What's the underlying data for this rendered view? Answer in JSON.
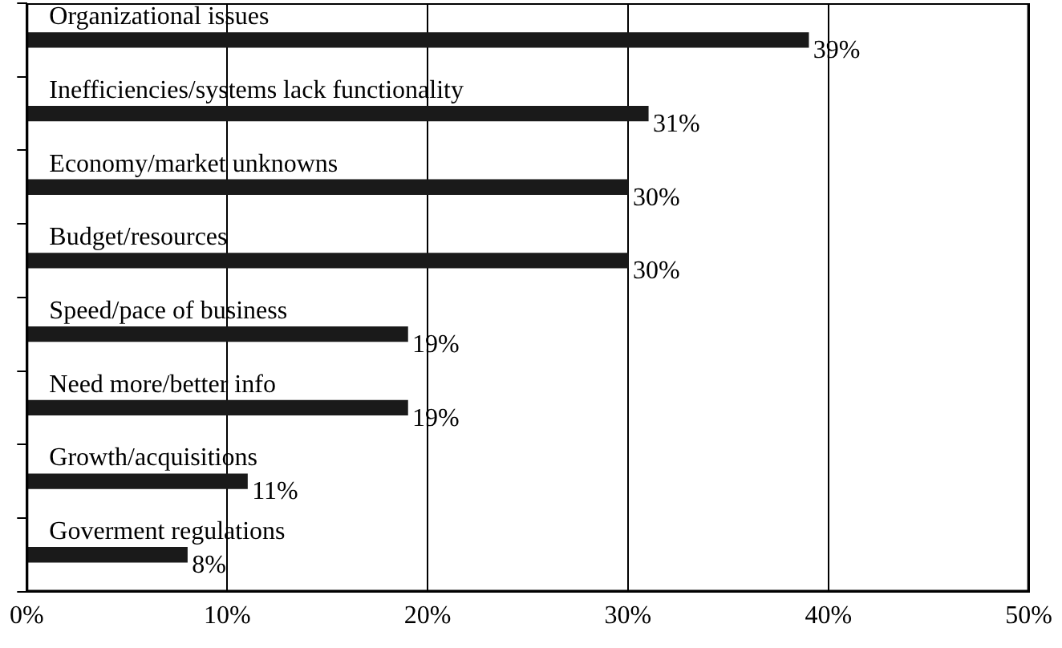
{
  "chart_data": {
    "type": "bar",
    "orientation": "horizontal",
    "categories": [
      "Organizational issues",
      "Inefficiencies/systems lack functionality",
      "Economy/market unknowns",
      "Budget/resources",
      "Speed/pace of business",
      "Need more/better info",
      "Growth/acquisitions",
      "Goverment regulations"
    ],
    "values": [
      39,
      31,
      30,
      30,
      19,
      19,
      11,
      8
    ],
    "color": "#1a1a1a",
    "value_labels": [
      "39%",
      "31%",
      "30%",
      "30%",
      "19%",
      "19%",
      "11%",
      "8%"
    ],
    "xlim": [
      0,
      50
    ],
    "xticks": [
      {
        "value": 0,
        "label": "0%"
      },
      {
        "value": 10,
        "label": "10%"
      },
      {
        "value": 20,
        "label": "20%"
      },
      {
        "value": 30,
        "label": "30%"
      },
      {
        "value": 40,
        "label": "40%"
      },
      {
        "value": 50,
        "label": "50%"
      }
    ],
    "grid": "x",
    "legend": false
  }
}
